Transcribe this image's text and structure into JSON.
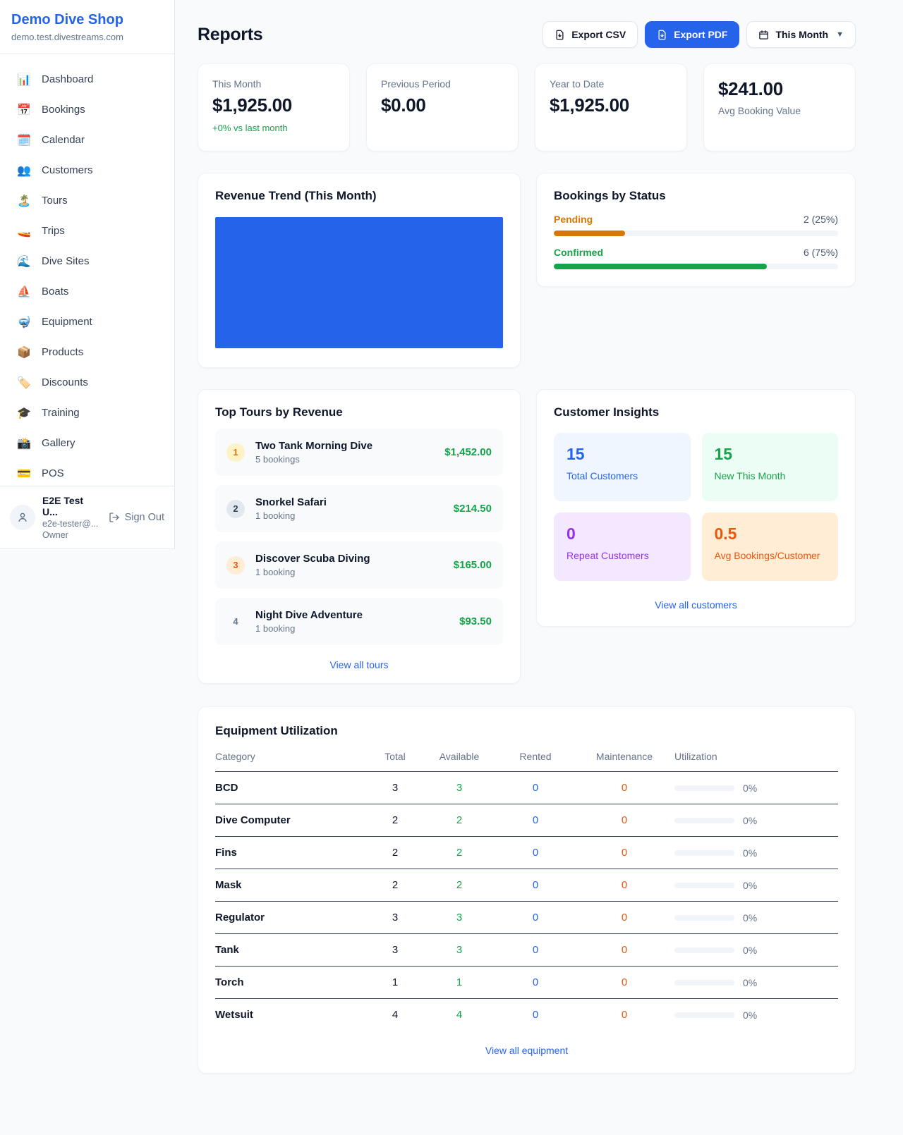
{
  "colors": {
    "accent_blue": "#2563eb",
    "green": "#16a34a",
    "amber": "#d97706",
    "orange": "#ea580c",
    "purple": "#9333ea"
  },
  "sidebar": {
    "shop_name": "Demo Dive Shop",
    "domain": "demo.test.divestreams.com",
    "items": [
      {
        "icon": "📊",
        "label": "Dashboard"
      },
      {
        "icon": "📅",
        "label": "Bookings"
      },
      {
        "icon": "🗓️",
        "label": "Calendar"
      },
      {
        "icon": "👥",
        "label": "Customers"
      },
      {
        "icon": "🏝️",
        "label": "Tours"
      },
      {
        "icon": "🚤",
        "label": "Trips"
      },
      {
        "icon": "🌊",
        "label": "Dive Sites"
      },
      {
        "icon": "⛵",
        "label": "Boats"
      },
      {
        "icon": "🤿",
        "label": "Equipment"
      },
      {
        "icon": "📦",
        "label": "Products"
      },
      {
        "icon": "🏷️",
        "label": "Discounts"
      },
      {
        "icon": "🎓",
        "label": "Training"
      },
      {
        "icon": "📸",
        "label": "Gallery"
      },
      {
        "icon": "💳",
        "label": "POS"
      }
    ],
    "user": {
      "name": "E2E Test U...",
      "email": "e2e-tester@...",
      "role": "Owner",
      "sign_out": "Sign Out"
    }
  },
  "header": {
    "title": "Reports",
    "export_csv": "Export CSV",
    "export_pdf": "Export PDF",
    "period": "This Month"
  },
  "stats": [
    {
      "label": "This Month",
      "value": "$1,925.00",
      "delta": "+0% vs last month"
    },
    {
      "label": "Previous Period",
      "value": "$0.00"
    },
    {
      "label": "Year to Date",
      "value": "$1,925.00"
    },
    {
      "label": "Avg Booking Value",
      "value": "$241.00"
    }
  ],
  "revenue_trend": {
    "title": "Revenue Trend (This Month)",
    "bar_color": "#2563eb"
  },
  "bookings_by_status": {
    "title": "Bookings by Status",
    "rows": [
      {
        "label": "Pending",
        "count_text": "2 (25%)",
        "pct": 25,
        "color": "#d97706"
      },
      {
        "label": "Confirmed",
        "count_text": "6 (75%)",
        "pct": 75,
        "color": "#16a34a"
      }
    ]
  },
  "top_tours": {
    "title": "Top Tours by Revenue",
    "link": "View all tours",
    "rows": [
      {
        "rank": "1",
        "name": "Two Tank Morning Dive",
        "bookings": "5 bookings",
        "amount": "$1,452.00"
      },
      {
        "rank": "2",
        "name": "Snorkel Safari",
        "bookings": "1 booking",
        "amount": "$214.50"
      },
      {
        "rank": "3",
        "name": "Discover Scuba Diving",
        "bookings": "1 booking",
        "amount": "$165.00"
      },
      {
        "rank": "4",
        "name": "Night Dive Adventure",
        "bookings": "1 booking",
        "amount": "$93.50"
      }
    ]
  },
  "customer_insights": {
    "title": "Customer Insights",
    "link": "View all customers",
    "tiles": [
      {
        "value": "15",
        "label": "Total Customers"
      },
      {
        "value": "15",
        "label": "New This Month"
      },
      {
        "value": "0",
        "label": "Repeat Customers"
      },
      {
        "value": "0.5",
        "label": "Avg Bookings/Customer"
      }
    ]
  },
  "equipment": {
    "title": "Equipment Utilization",
    "link": "View all equipment",
    "columns": [
      "Category",
      "Total",
      "Available",
      "Rented",
      "Maintenance",
      "Utilization"
    ],
    "rows": [
      {
        "category": "BCD",
        "total": "3",
        "available": "3",
        "rented": "0",
        "maintenance": "0",
        "utilization": "0%",
        "pct": 0
      },
      {
        "category": "Dive Computer",
        "total": "2",
        "available": "2",
        "rented": "0",
        "maintenance": "0",
        "utilization": "0%",
        "pct": 0
      },
      {
        "category": "Fins",
        "total": "2",
        "available": "2",
        "rented": "0",
        "maintenance": "0",
        "utilization": "0%",
        "pct": 0
      },
      {
        "category": "Mask",
        "total": "2",
        "available": "2",
        "rented": "0",
        "maintenance": "0",
        "utilization": "0%",
        "pct": 0
      },
      {
        "category": "Regulator",
        "total": "3",
        "available": "3",
        "rented": "0",
        "maintenance": "0",
        "utilization": "0%",
        "pct": 0
      },
      {
        "category": "Tank",
        "total": "3",
        "available": "3",
        "rented": "0",
        "maintenance": "0",
        "utilization": "0%",
        "pct": 0
      },
      {
        "category": "Torch",
        "total": "1",
        "available": "1",
        "rented": "0",
        "maintenance": "0",
        "utilization": "0%",
        "pct": 0
      },
      {
        "category": "Wetsuit",
        "total": "4",
        "available": "4",
        "rented": "0",
        "maintenance": "0",
        "utilization": "0%",
        "pct": 0
      }
    ]
  }
}
